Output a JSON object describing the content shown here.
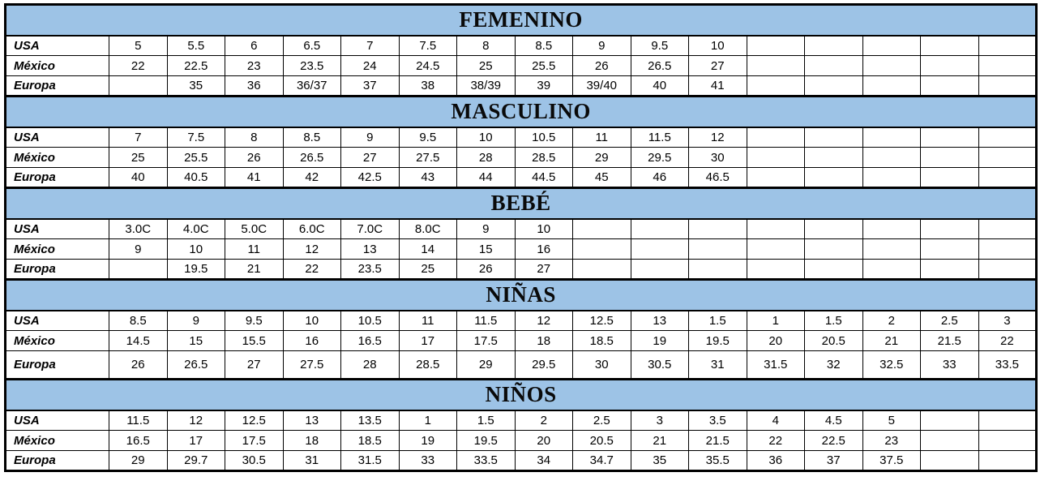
{
  "table": {
    "header_fill": "#9DC3E6",
    "border_color": "#000000",
    "text_color": "#000000",
    "columns": 16,
    "sections": [
      {
        "title": "FEMENINO",
        "rows": [
          {
            "label": "USA",
            "values": [
              "5",
              "5.5",
              "6",
              "6.5",
              "7",
              "7.5",
              "8",
              "8.5",
              "9",
              "9.5",
              "10",
              "",
              "",
              "",
              "",
              ""
            ]
          },
          {
            "label": "México",
            "values": [
              "22",
              "22.5",
              "23",
              "23.5",
              "24",
              "24.5",
              "25",
              "25.5",
              "26",
              "26.5",
              "27",
              "",
              "",
              "",
              "",
              ""
            ]
          },
          {
            "label": "Europa",
            "values": [
              "",
              "35",
              "36",
              "36/37",
              "37",
              "38",
              "38/39",
              "39",
              "39/40",
              "40",
              "41",
              "",
              "",
              "",
              "",
              ""
            ]
          }
        ]
      },
      {
        "title": "MASCULINO",
        "rows": [
          {
            "label": "USA",
            "values": [
              "7",
              "7.5",
              "8",
              "8.5",
              "9",
              "9.5",
              "10",
              "10.5",
              "11",
              "11.5",
              "12",
              "",
              "",
              "",
              "",
              ""
            ]
          },
          {
            "label": "México",
            "values": [
              "25",
              "25.5",
              "26",
              "26.5",
              "27",
              "27.5",
              "28",
              "28.5",
              "29",
              "29.5",
              "30",
              "",
              "",
              "",
              "",
              ""
            ]
          },
          {
            "label": "Europa",
            "values": [
              "40",
              "40.5",
              "41",
              "42",
              "42.5",
              "43",
              "44",
              "44.5",
              "45",
              "46",
              "46.5",
              "",
              "",
              "",
              "",
              ""
            ]
          }
        ]
      },
      {
        "title": "BEBÉ",
        "rows": [
          {
            "label": "USA",
            "values": [
              "3.0C",
              "4.0C",
              "5.0C",
              "6.0C",
              "7.0C",
              "8.0C",
              "9",
              "10",
              "",
              "",
              "",
              "",
              "",
              "",
              "",
              ""
            ]
          },
          {
            "label": "México",
            "values": [
              "9",
              "10",
              "11",
              "12",
              "13",
              "14",
              "15",
              "16",
              "",
              "",
              "",
              "",
              "",
              "",
              "",
              ""
            ]
          },
          {
            "label": "Europa",
            "values": [
              "",
              "19.5",
              "21",
              "22",
              "23.5",
              "25",
              "26",
              "27",
              "",
              "",
              "",
              "",
              "",
              "",
              "",
              ""
            ]
          }
        ]
      },
      {
        "title": "NIÑAS",
        "rows": [
          {
            "label": "USA",
            "values": [
              "8.5",
              "9",
              "9.5",
              "10",
              "10.5",
              "11",
              "11.5",
              "12",
              "12.5",
              "13",
              "1.5",
              "1",
              "1.5",
              "2",
              "2.5",
              "3"
            ]
          },
          {
            "label": "México",
            "values": [
              "14.5",
              "15",
              "15.5",
              "16",
              "16.5",
              "17",
              "17.5",
              "18",
              "18.5",
              "19",
              "19.5",
              "20",
              "20.5",
              "21",
              "21.5",
              "22"
            ]
          },
          {
            "label": "Europa",
            "values": [
              "26",
              "26.5",
              "27",
              "27.5",
              "28",
              "28.5",
              "29",
              "29.5",
              "30",
              "30.5",
              "31",
              "31.5",
              "32",
              "32.5",
              "33",
              "33.5"
            ]
          }
        ]
      },
      {
        "title": "NIÑOS",
        "rows": [
          {
            "label": "USA",
            "values": [
              "11.5",
              "12",
              "12.5",
              "13",
              "13.5",
              "1",
              "1.5",
              "2",
              "2.5",
              "3",
              "3.5",
              "4",
              "4.5",
              "5",
              "",
              ""
            ]
          },
          {
            "label": "México",
            "values": [
              "16.5",
              "17",
              "17.5",
              "18",
              "18.5",
              "19",
              "19.5",
              "20",
              "20.5",
              "21",
              "21.5",
              "22",
              "22.5",
              "23",
              "",
              ""
            ]
          },
          {
            "label": "Europa",
            "values": [
              "29",
              "29.7",
              "30.5",
              "31",
              "31.5",
              "33",
              "33.5",
              "34",
              "34.7",
              "35",
              "35.5",
              "36",
              "37",
              "37.5",
              "",
              ""
            ]
          }
        ]
      }
    ]
  }
}
